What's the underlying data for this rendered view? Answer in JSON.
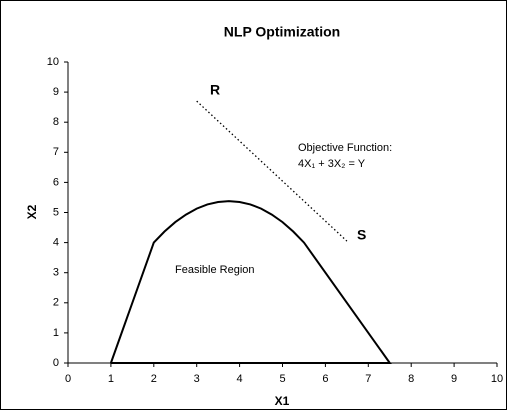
{
  "chart_data": {
    "type": "scatter-line",
    "title": "NLP Optimization",
    "x_label": "X1",
    "y_label": "X2",
    "xlim": [
      0,
      10
    ],
    "ylim": [
      0,
      10
    ],
    "xticks": [
      0,
      1,
      2,
      3,
      4,
      5,
      6,
      7,
      8,
      9,
      10
    ],
    "yticks": [
      0,
      1,
      2,
      3,
      4,
      5,
      6,
      7,
      8,
      9,
      10
    ],
    "grid": false,
    "series": [
      {
        "color": "#000000",
        "style": "solid",
        "x": [
          1,
          2,
          2.25,
          2.5,
          2.75,
          3,
          3.25,
          3.5,
          3.75,
          4,
          4.25,
          4.5,
          4.75,
          5,
          5.25,
          5.5,
          7.5,
          1
        ],
        "values": [
          0,
          4,
          4.37,
          4.68,
          4.93,
          5.13,
          5.27,
          5.35,
          5.38,
          5.35,
          5.27,
          5.13,
          4.93,
          4.68,
          4.37,
          4,
          0,
          0
        ]
      },
      {
        "color": "#000000",
        "style": "dotted",
        "x": [
          3,
          6.5
        ],
        "values": [
          8.7,
          4.05
        ]
      }
    ],
    "annotations": [
      "R",
      "S",
      "Objective Function:",
      "4X₁ + 3X₂ = Y",
      "Feasible Region"
    ]
  }
}
